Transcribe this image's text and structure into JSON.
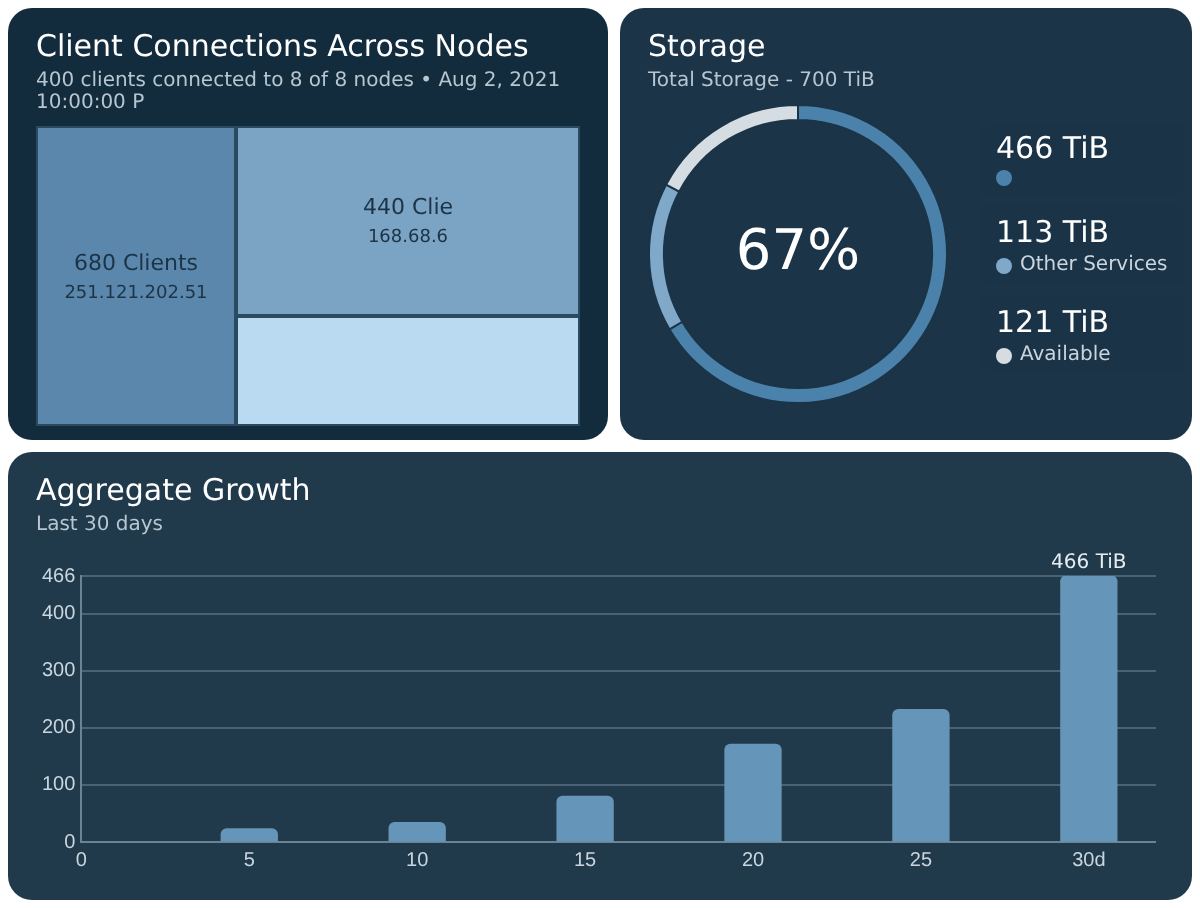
{
  "chart_data": [
    {
      "type": "other",
      "title": "Client Connections Across Nodes",
      "subtitle": "400 clients connected to 8 of 8 nodes • Aug 2, 2021 10:00:00 P",
      "annotations": [
        "680 Clients",
        "251.121.202.51",
        "440 Clie",
        "168.68.6"
      ]
    },
    {
      "type": "donut",
      "title": "Storage",
      "subtitle": "Total Storage - 700 TiB",
      "categories": [
        null,
        "Other Services",
        "Available"
      ],
      "values": [
        466,
        113,
        121
      ],
      "colors": [
        "#4b82ab",
        "#7fa8c9",
        "#d5dde3"
      ],
      "value_labels": [
        "466 TiB",
        "113 TiB",
        "121 TiB"
      ],
      "annotations": [
        "67%"
      ],
      "legend": "right"
    },
    {
      "type": "bar",
      "title": "Aggregate Growth",
      "subtitle": "Last 30 days",
      "x": [
        5,
        10,
        15,
        20,
        25,
        30
      ],
      "values": [
        23,
        34,
        80,
        171,
        232,
        466
      ],
      "color": "#6595b8",
      "xlim": [
        0,
        32
      ],
      "xticks": [
        0,
        5,
        10,
        15,
        20,
        25,
        {
          "value": 30,
          "label": "30d"
        }
      ],
      "ylim": [
        0,
        466
      ],
      "yticks": [
        0,
        100,
        200,
        300,
        400,
        466
      ],
      "grid": "y",
      "value_labels": [
        null,
        null,
        null,
        null,
        null,
        "466 TiB"
      ]
    }
  ]
}
